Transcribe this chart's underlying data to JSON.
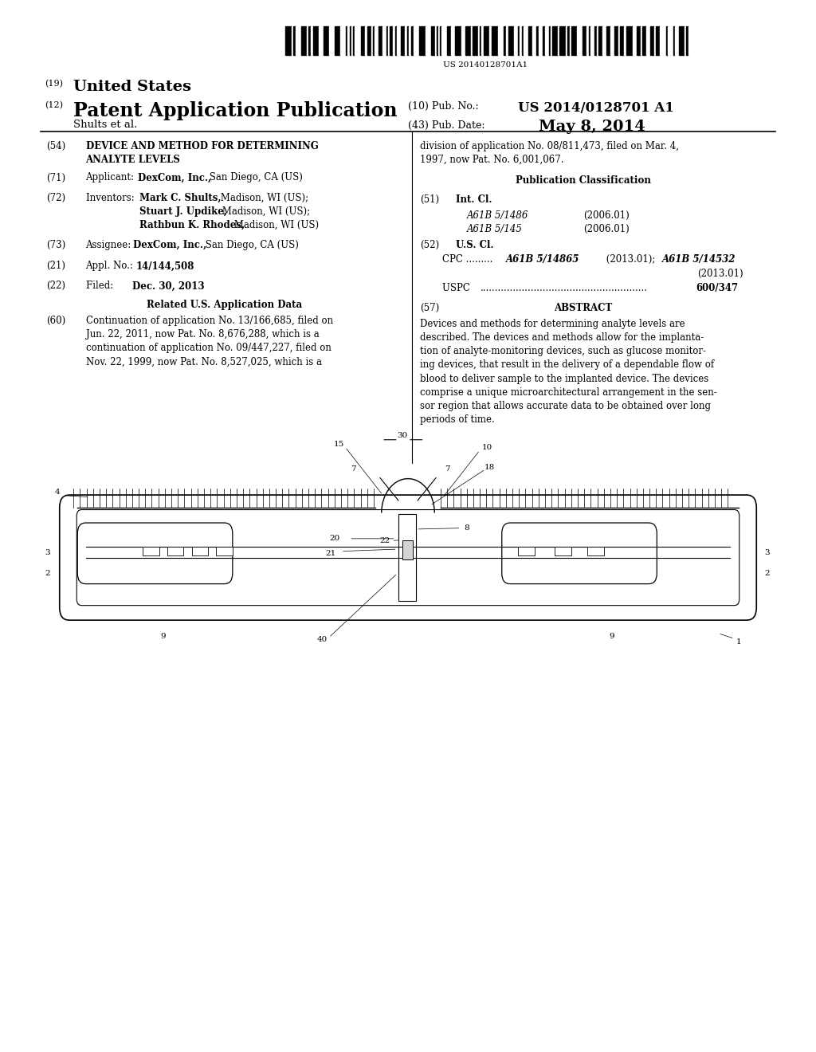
{
  "background_color": "#ffffff",
  "barcode_text": "US 20140128701A1",
  "us19_label": "(19)",
  "us19_text": "United States",
  "us12_label": "(12)",
  "us12_text": "Patent Application Publication",
  "pub_no_label": "(10) Pub. No.:",
  "pub_no_value": "US 2014/0128701 A1",
  "pub_date_label": "(43) Pub. Date:",
  "pub_date_value": "May 8, 2014",
  "applicant_line": "Shults et al.",
  "field54_label": "(54)",
  "field71_label": "(71)",
  "field72_label": "(72)",
  "field73_label": "(73)",
  "field21_label": "(21)",
  "field22_label": "(22)",
  "related_title": "Related U.S. Application Data",
  "field60_label": "(60)",
  "pub_class_title": "Publication Classification",
  "field51_label": "(51)",
  "field52_label": "(52)",
  "field57_label": "(57)",
  "abstract_title": "ABSTRACT"
}
